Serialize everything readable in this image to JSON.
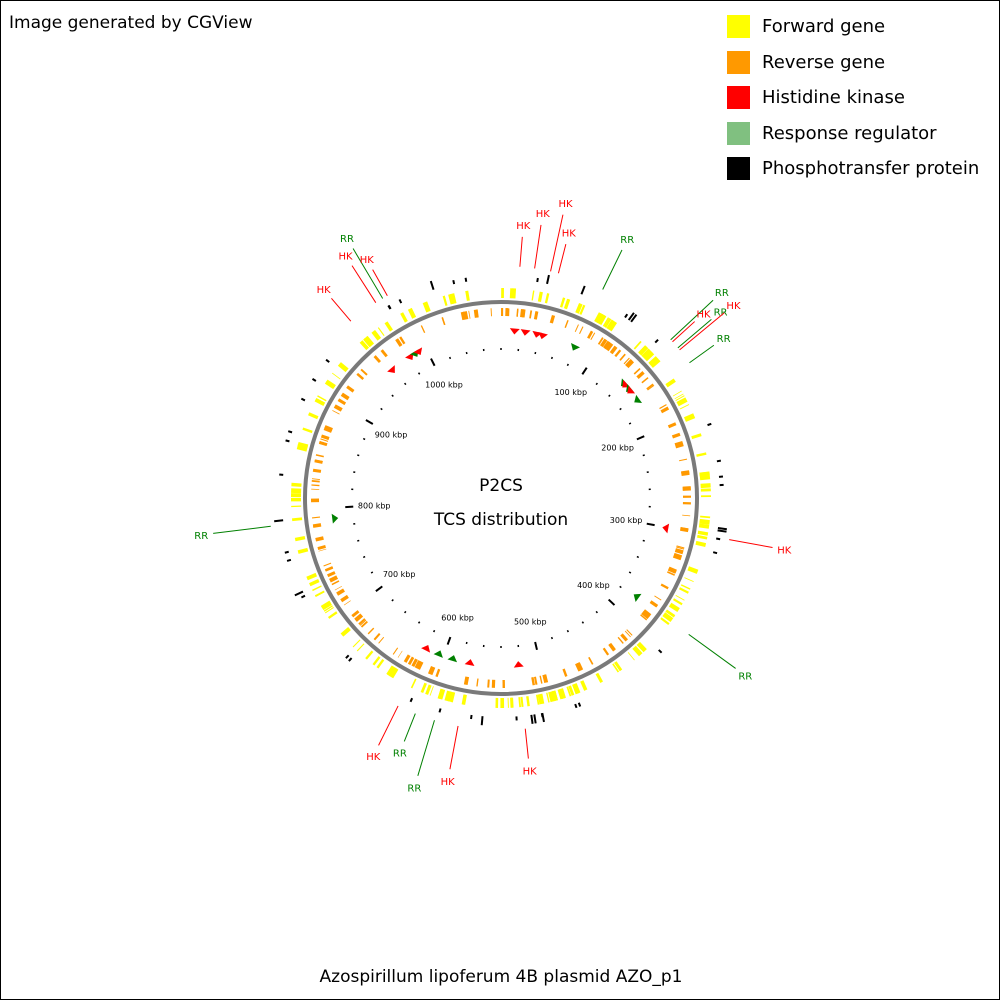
{
  "credit": "Image generated by CGView",
  "caption": "Azospirillum lipoferum 4B plasmid AZO_p1",
  "center_title": "P2CS",
  "center_subtitle": "TCS distribution",
  "legend": [
    {
      "label": "Forward gene",
      "color": "#ffff00"
    },
    {
      "label": "Reverse gene",
      "color": "#ff9900"
    },
    {
      "label": "Histidine kinase",
      "color": "#ff0000"
    },
    {
      "label": "Response regulator",
      "color": "#80c080"
    },
    {
      "label": "Phosphotransfer protein",
      "color": "#000000"
    }
  ],
  "colors": {
    "forward": "#ffff00",
    "reverse": "#ff9900",
    "hk": "#ff0000",
    "rr": "#008000",
    "backbone": "#7a7a7a",
    "ticks": "#000000"
  },
  "map": {
    "genome_length_kbp": 1080,
    "ruler_labels": [
      "1000 kbp",
      "100 kbp",
      "200 kbp",
      "300 kbp",
      "400 kbp",
      "500 kbp",
      "600 kbp",
      "700 kbp",
      "800 kbp",
      "900 kbp"
    ],
    "ruler_positions_kbp": [
      1000,
      100,
      200,
      300,
      400,
      500,
      600,
      700,
      800,
      900
    ],
    "features": [
      {
        "type": "HK",
        "pos_kbp": 14
      },
      {
        "type": "HK",
        "pos_kbp": 25
      },
      {
        "type": "HK",
        "pos_kbp": 37
      },
      {
        "type": "HK",
        "pos_kbp": 43
      },
      {
        "type": "RR",
        "pos_kbp": 78
      },
      {
        "type": "RR",
        "pos_kbp": 141
      },
      {
        "type": "HK",
        "pos_kbp": 143
      },
      {
        "type": "RR",
        "pos_kbp": 149
      },
      {
        "type": "HK",
        "pos_kbp": 151
      },
      {
        "type": "RR",
        "pos_kbp": 163
      },
      {
        "type": "HK",
        "pos_kbp": 301
      },
      {
        "type": "RR",
        "pos_kbp": 378
      },
      {
        "type": "HK",
        "pos_kbp": 522
      },
      {
        "type": "HK",
        "pos_kbp": 572
      },
      {
        "type": "RR",
        "pos_kbp": 590
      },
      {
        "type": "RR",
        "pos_kbp": 605
      },
      {
        "type": "HK",
        "pos_kbp": 619
      },
      {
        "type": "RR",
        "pos_kbp": 789
      },
      {
        "type": "HK",
        "pos_kbp": 959
      },
      {
        "type": "HK",
        "pos_kbp": 982
      },
      {
        "type": "RR",
        "pos_kbp": 988
      },
      {
        "type": "HK",
        "pos_kbp": 992
      }
    ]
  }
}
